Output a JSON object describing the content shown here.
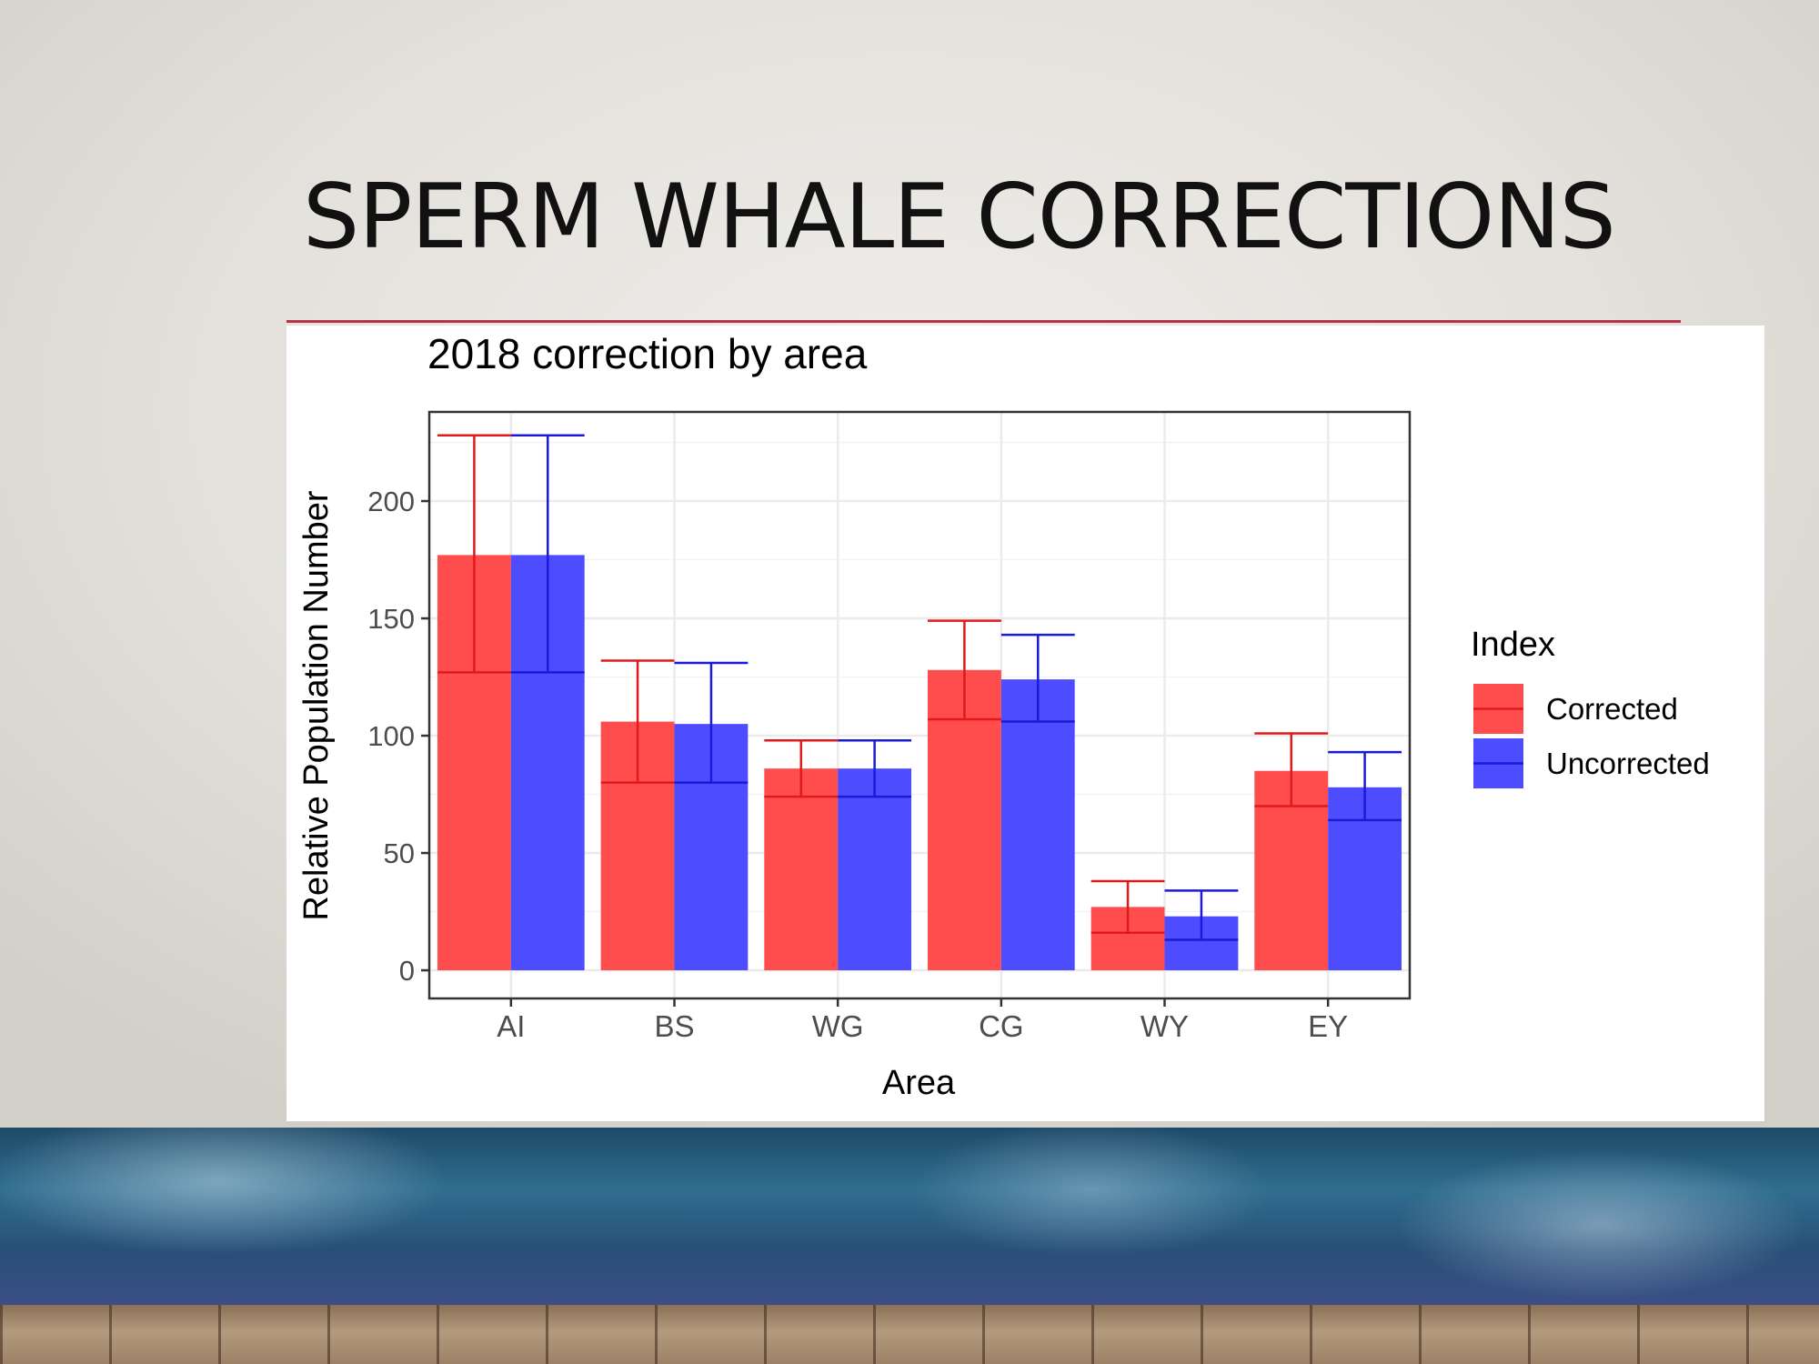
{
  "slide": {
    "title": "SPERM WHALE CORRECTIONS"
  },
  "colors": {
    "corrected": "#ff4d4d",
    "uncorrected": "#4d4dff",
    "corrected_error": "#e01a1a",
    "uncorrected_error": "#1a1ad9",
    "title_rule": "#b3334a"
  },
  "chart_data": {
    "type": "bar",
    "title": "2018 correction by area",
    "xlabel": "Area",
    "ylabel": "Relative Population Number",
    "categories": [
      "AI",
      "BS",
      "WG",
      "CG",
      "WY",
      "EY"
    ],
    "ylim": [
      -12,
      238
    ],
    "yticks": [
      0,
      50,
      100,
      150,
      200
    ],
    "grid": true,
    "legend": {
      "title": "Index",
      "placement": "right"
    },
    "series": [
      {
        "name": "Corrected",
        "values": [
          177,
          106,
          86,
          128,
          27,
          85
        ],
        "error_low": [
          127,
          80,
          74,
          107,
          16,
          70
        ],
        "error_high": [
          228,
          132,
          98,
          149,
          38,
          101
        ]
      },
      {
        "name": "Uncorrected",
        "values": [
          177,
          105,
          86,
          124,
          23,
          78
        ],
        "error_low": [
          127,
          80,
          74,
          106,
          13,
          64
        ],
        "error_high": [
          228,
          131,
          98,
          143,
          34,
          93
        ]
      }
    ]
  }
}
